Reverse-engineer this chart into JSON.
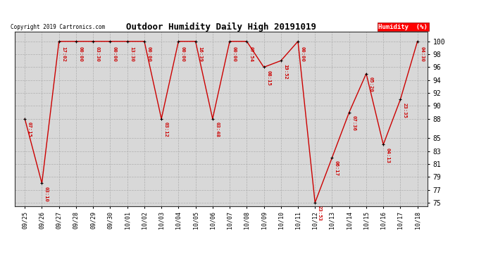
{
  "title": "Outdoor Humidity Daily High 20191019",
  "copyright": "Copyright 2019 Cartronics.com",
  "legend_label": "Humidity  (%)",
  "background_color": "#ffffff",
  "plot_bg_color": "#d8d8d8",
  "line_color": "#cc0000",
  "marker_color": "#000000",
  "title_fontsize": 10,
  "yticks": [
    75,
    77,
    79,
    81,
    83,
    85,
    88,
    90,
    92,
    94,
    96,
    98,
    100
  ],
  "ylim": [
    74.5,
    101.5
  ],
  "data_points": [
    {
      "date": "09/25",
      "value": 88,
      "time": "07:15"
    },
    {
      "date": "09/26",
      "value": 78,
      "time": "03:10"
    },
    {
      "date": "09/27",
      "value": 100,
      "time": "17:02"
    },
    {
      "date": "09/28",
      "value": 100,
      "time": "00:00"
    },
    {
      "date": "09/29",
      "value": 100,
      "time": "03:30"
    },
    {
      "date": "09/30",
      "value": 100,
      "time": "00:00"
    },
    {
      "date": "10/01",
      "value": 100,
      "time": "13:30"
    },
    {
      "date": "10/02",
      "value": 100,
      "time": "00:00"
    },
    {
      "date": "10/03",
      "value": 88,
      "time": "03:12"
    },
    {
      "date": "10/04",
      "value": 100,
      "time": "00:00"
    },
    {
      "date": "10/05",
      "value": 100,
      "time": "16:39"
    },
    {
      "date": "10/06",
      "value": 88,
      "time": "03:48"
    },
    {
      "date": "10/07",
      "value": 100,
      "time": "00:00"
    },
    {
      "date": "10/08",
      "value": 100,
      "time": "07:54"
    },
    {
      "date": "10/09",
      "value": 96,
      "time": "08:15"
    },
    {
      "date": "10/10",
      "value": 97,
      "time": "19:52"
    },
    {
      "date": "10/11",
      "value": 100,
      "time": "00:00"
    },
    {
      "date": "10/12",
      "value": 75,
      "time": "23:53"
    },
    {
      "date": "10/13",
      "value": 82,
      "time": "06:17"
    },
    {
      "date": "10/14",
      "value": 89,
      "time": "07:36"
    },
    {
      "date": "10/15",
      "value": 95,
      "time": "05:20"
    },
    {
      "date": "10/16",
      "value": 84,
      "time": "04:13"
    },
    {
      "date": "10/17",
      "value": 91,
      "time": "23:35"
    },
    {
      "date": "10/18",
      "value": 100,
      "time": "04:30"
    }
  ]
}
